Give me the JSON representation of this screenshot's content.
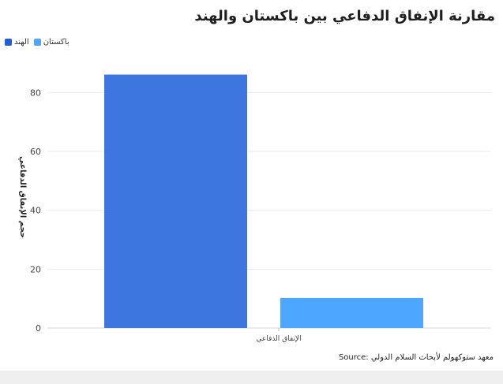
{
  "chart_data": {
    "type": "bar",
    "title": "مقارنة الإنفاق الدفاعي بين باكستان والهند",
    "categories": [
      "الإنفاق الدفاعي"
    ],
    "series": [
      {
        "name": "الهند",
        "values": [
          86.1
        ],
        "color": "#3e76e0"
      },
      {
        "name": "باكستان",
        "values": [
          10.2
        ],
        "color": "#4da6ff"
      }
    ],
    "ylabel": "حجم الإنفاق الدفاعي",
    "xlabel": "",
    "ylim": [
      0,
      90
    ],
    "yticks": [
      0,
      20,
      40,
      60,
      80
    ],
    "grid": true,
    "legend_position": "top-left"
  },
  "legend_colors": {
    "الهند": "#1f5fd6",
    "باكستان": "#4da6ff"
  },
  "source": "معهد ستوكهولم لأبحاث السلام الدولي :Source"
}
